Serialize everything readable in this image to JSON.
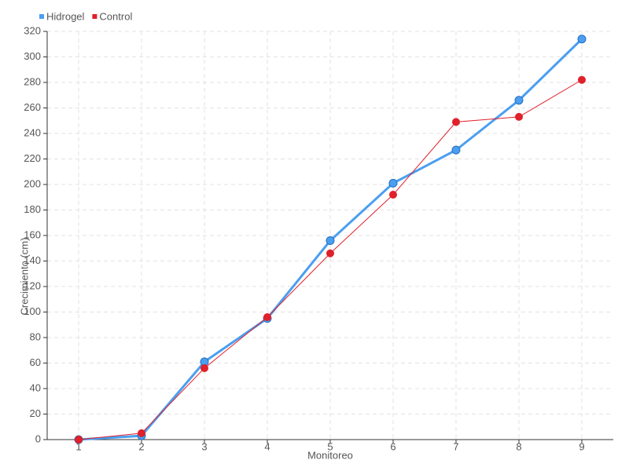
{
  "chart_data": {
    "type": "line",
    "categories": [
      "1",
      "2",
      "3",
      "4",
      "5",
      "6",
      "7",
      "8",
      "9"
    ],
    "series": [
      {
        "name": "Hidrogel",
        "color": "#4a9ff0",
        "values": [
          0,
          3,
          61,
          95,
          156,
          201,
          227,
          266,
          314
        ]
      },
      {
        "name": "Control",
        "color": "#e0202a",
        "values": [
          0,
          5,
          56,
          96,
          146,
          192,
          249,
          253,
          282
        ]
      }
    ],
    "x_label": "Monitoreo",
    "y_label": "Crecimiento (cm)",
    "ylim": [
      0,
      320
    ],
    "yticks": [
      0,
      20,
      40,
      60,
      80,
      100,
      120,
      140,
      160,
      180,
      200,
      220,
      240,
      260,
      280,
      300,
      320
    ],
    "grid": true,
    "legend": "top-left"
  }
}
